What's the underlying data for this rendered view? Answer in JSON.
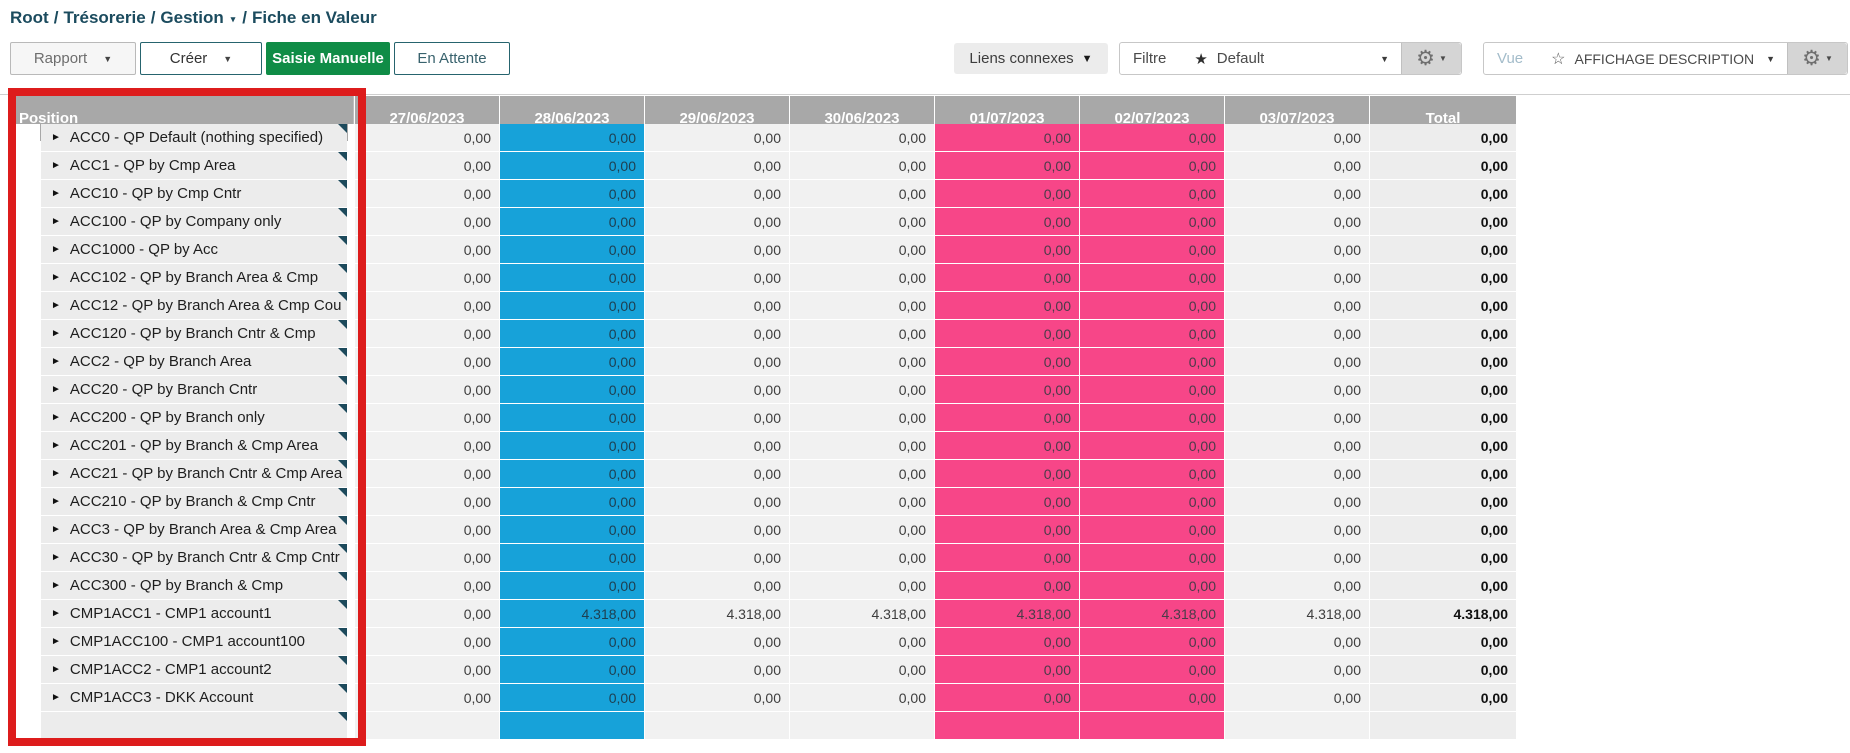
{
  "breadcrumb": {
    "separator": "/",
    "items": [
      "Root",
      "Trésorerie",
      "Gestion",
      "Fiche en Valeur"
    ]
  },
  "icons": {
    "caret_down": "▼",
    "caret_small": "▾",
    "star_filled": "★",
    "star_outline": "☆",
    "gear": "⚙",
    "expand_arrow": "►"
  },
  "toolbar": {
    "rapport_label": "Rapport",
    "creer_label": "Créer",
    "saisie_manuelle_label": "Saisie Manuelle",
    "en_attente_label": "En Attente",
    "liens_connexes_label": "Liens connexes",
    "filtre_label": "Filtre",
    "filtre_value": "Default",
    "vue_label": "Vue",
    "vue_value": "AFFICHAGE DESCRIPTION"
  },
  "colors": {
    "accent_green": "#0f8c46",
    "teal_border": "#26646e",
    "header_grey": "#a8a8a8",
    "highlight_blue": "#17a2d9",
    "highlight_pink": "#f74688",
    "annotation_red": "#dd1c1c"
  },
  "table": {
    "position_header": "Position",
    "date_columns": [
      "27/06/2023",
      "28/06/2023",
      "29/06/2023",
      "30/06/2023",
      "01/07/2023",
      "02/07/2023",
      "03/07/2023"
    ],
    "total_header": "Total",
    "highlight_blue_column": "28/06/2023",
    "highlight_pink_columns": [
      "01/07/2023",
      "02/07/2023"
    ],
    "rows": [
      {
        "label": "ACC0 - QP Default (nothing specified)",
        "values": [
          "0,00",
          "0,00",
          "0,00",
          "0,00",
          "0,00",
          "0,00",
          "0,00"
        ],
        "total": "0,00"
      },
      {
        "label": "ACC1 - QP by Cmp Area",
        "values": [
          "0,00",
          "0,00",
          "0,00",
          "0,00",
          "0,00",
          "0,00",
          "0,00"
        ],
        "total": "0,00"
      },
      {
        "label": "ACC10 - QP by Cmp Cntr",
        "values": [
          "0,00",
          "0,00",
          "0,00",
          "0,00",
          "0,00",
          "0,00",
          "0,00"
        ],
        "total": "0,00"
      },
      {
        "label": "ACC100 - QP by Company only",
        "values": [
          "0,00",
          "0,00",
          "0,00",
          "0,00",
          "0,00",
          "0,00",
          "0,00"
        ],
        "total": "0,00"
      },
      {
        "label": "ACC1000 - QP by Acc",
        "values": [
          "0,00",
          "0,00",
          "0,00",
          "0,00",
          "0,00",
          "0,00",
          "0,00"
        ],
        "total": "0,00"
      },
      {
        "label": "ACC102 - QP by Branch Area & Cmp",
        "values": [
          "0,00",
          "0,00",
          "0,00",
          "0,00",
          "0,00",
          "0,00",
          "0,00"
        ],
        "total": "0,00"
      },
      {
        "label": "ACC12 - QP by Branch Area & Cmp Cou",
        "values": [
          "0,00",
          "0,00",
          "0,00",
          "0,00",
          "0,00",
          "0,00",
          "0,00"
        ],
        "total": "0,00"
      },
      {
        "label": "ACC120 - QP by Branch Cntr & Cmp",
        "values": [
          "0,00",
          "0,00",
          "0,00",
          "0,00",
          "0,00",
          "0,00",
          "0,00"
        ],
        "total": "0,00"
      },
      {
        "label": "ACC2 - QP by Branch Area",
        "values": [
          "0,00",
          "0,00",
          "0,00",
          "0,00",
          "0,00",
          "0,00",
          "0,00"
        ],
        "total": "0,00"
      },
      {
        "label": "ACC20 - QP by Branch Cntr",
        "values": [
          "0,00",
          "0,00",
          "0,00",
          "0,00",
          "0,00",
          "0,00",
          "0,00"
        ],
        "total": "0,00"
      },
      {
        "label": "ACC200 - QP by Branch only",
        "values": [
          "0,00",
          "0,00",
          "0,00",
          "0,00",
          "0,00",
          "0,00",
          "0,00"
        ],
        "total": "0,00"
      },
      {
        "label": "ACC201 - QP by Branch & Cmp Area",
        "values": [
          "0,00",
          "0,00",
          "0,00",
          "0,00",
          "0,00",
          "0,00",
          "0,00"
        ],
        "total": "0,00"
      },
      {
        "label": "ACC21 - QP by Branch Cntr & Cmp Area",
        "values": [
          "0,00",
          "0,00",
          "0,00",
          "0,00",
          "0,00",
          "0,00",
          "0,00"
        ],
        "total": "0,00"
      },
      {
        "label": "ACC210 - QP by Branch & Cmp Cntr",
        "values": [
          "0,00",
          "0,00",
          "0,00",
          "0,00",
          "0,00",
          "0,00",
          "0,00"
        ],
        "total": "0,00"
      },
      {
        "label": "ACC3 - QP by Branch Area & Cmp Area",
        "values": [
          "0,00",
          "0,00",
          "0,00",
          "0,00",
          "0,00",
          "0,00",
          "0,00"
        ],
        "total": "0,00"
      },
      {
        "label": "ACC30 - QP by Branch Cntr & Cmp Cntr",
        "values": [
          "0,00",
          "0,00",
          "0,00",
          "0,00",
          "0,00",
          "0,00",
          "0,00"
        ],
        "total": "0,00"
      },
      {
        "label": "ACC300 - QP by Branch & Cmp",
        "values": [
          "0,00",
          "0,00",
          "0,00",
          "0,00",
          "0,00",
          "0,00",
          "0,00"
        ],
        "total": "0,00"
      },
      {
        "label": "CMP1ACC1 - CMP1 account1",
        "values": [
          "0,00",
          "4.318,00",
          "4.318,00",
          "4.318,00",
          "4.318,00",
          "4.318,00",
          "4.318,00"
        ],
        "total": "4.318,00"
      },
      {
        "label": "CMP1ACC100 - CMP1 account100",
        "values": [
          "0,00",
          "0,00",
          "0,00",
          "0,00",
          "0,00",
          "0,00",
          "0,00"
        ],
        "total": "0,00"
      },
      {
        "label": "CMP1ACC2 - CMP1 account2",
        "values": [
          "0,00",
          "0,00",
          "0,00",
          "0,00",
          "0,00",
          "0,00",
          "0,00"
        ],
        "total": "0,00"
      },
      {
        "label": "CMP1ACC3 - DKK Account",
        "values": [
          "0,00",
          "0,00",
          "0,00",
          "0,00",
          "0,00",
          "0,00",
          "0,00"
        ],
        "total": "0,00"
      }
    ],
    "partial_row": {
      "label": "",
      "values": [
        "",
        "",
        "",
        "",
        "",
        "",
        ""
      ],
      "total": ""
    }
  }
}
